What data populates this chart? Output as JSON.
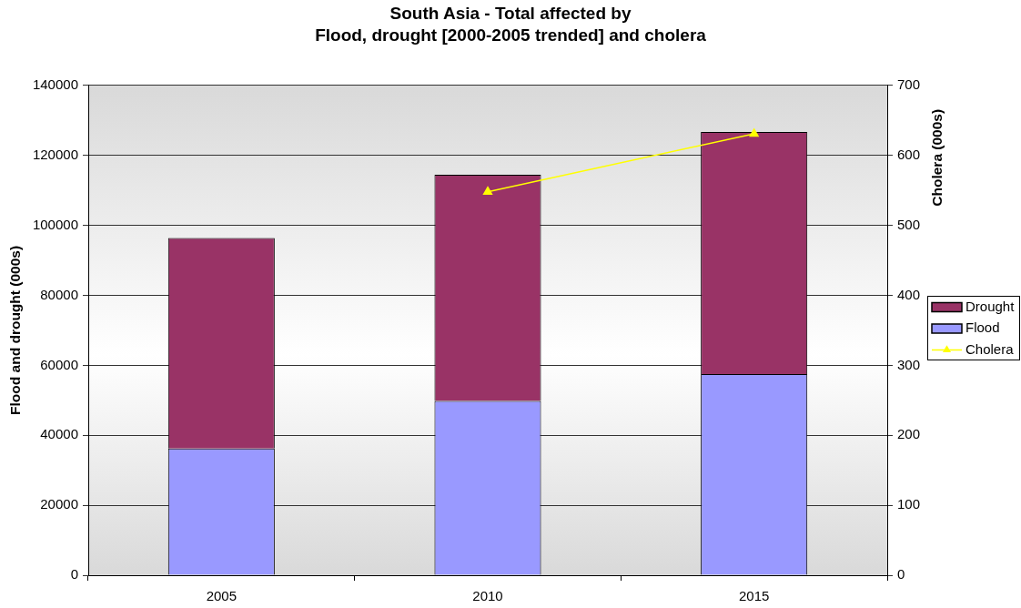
{
  "chart_data": {
    "type": "bar",
    "title": "South Asia - Total affected by\nFlood, drought [2000-2005 trended] and cholera",
    "ylabel": "Flood and drought (000s)",
    "y2label": "Cholera (000s)",
    "categories": [
      "2005",
      "2010",
      "2015"
    ],
    "stacked": true,
    "series": [
      {
        "name": "Flood",
        "color": "#9999ff",
        "values": [
          36200,
          49800,
          57500
        ]
      },
      {
        "name": "Drought",
        "color": "#993366",
        "values": [
          60200,
          64700,
          69200
        ]
      },
      {
        "name": "Cholera",
        "type": "line",
        "axis": "y2",
        "color": "#ffff00",
        "values": [
          null,
          548,
          631
        ]
      }
    ],
    "ylim": [
      0,
      140000
    ],
    "yticks": [
      0,
      20000,
      40000,
      60000,
      80000,
      100000,
      120000,
      140000
    ],
    "y2lim": [
      0,
      700
    ],
    "y2ticks": [
      0,
      100,
      200,
      300,
      400,
      500,
      600,
      700
    ],
    "grid": "y",
    "legend": "right",
    "marker": "triangle"
  }
}
